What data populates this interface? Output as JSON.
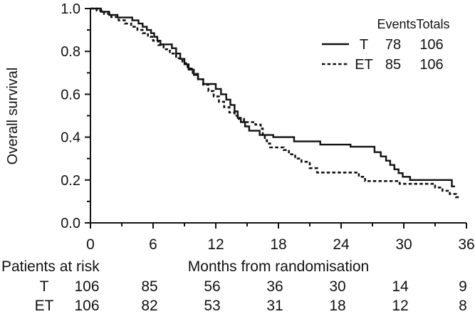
{
  "figure": {
    "background": "#ffffff",
    "ink": "#111111"
  },
  "chart_data": {
    "type": "line",
    "subtype": "kaplan-meier-step-curves",
    "title": "",
    "xlabel": "Months from randomisation",
    "ylabel": "Overall survival",
    "xlim": [
      0,
      36
    ],
    "ylim": [
      0.0,
      1.0
    ],
    "grid": "off",
    "legend_position": "top-right",
    "x_major_ticks": [
      0,
      6,
      12,
      18,
      24,
      30,
      36
    ],
    "x_minor_ticks": [
      3,
      9,
      15,
      21,
      27,
      33
    ],
    "y_major_tick_labels": [
      "1.0",
      "0.8",
      "0.6",
      "0.4",
      "0.2",
      "0.0"
    ],
    "y_major_ticks": [
      1.0,
      0.8,
      0.6,
      0.4,
      0.2,
      0.0
    ],
    "y_minor_ticks": [
      0.9,
      0.7,
      0.5,
      0.3,
      0.1
    ],
    "legend": {
      "header_events": "Events",
      "header_totals": "Totals",
      "rows": [
        {
          "name": "T",
          "events": "78",
          "totals": "106",
          "style": "solid"
        },
        {
          "name": "ET",
          "events": "85",
          "totals": "106",
          "style": "dashed"
        }
      ]
    },
    "series": [
      {
        "name": "T",
        "style": "solid",
        "end": 34.9,
        "steps": [
          [
            0,
            1.0
          ],
          [
            1.0,
            0.985
          ],
          [
            1.8,
            0.97
          ],
          [
            2.6,
            0.958
          ],
          [
            4.0,
            0.945
          ],
          [
            4.6,
            0.93
          ],
          [
            5.0,
            0.915
          ],
          [
            5.4,
            0.9
          ],
          [
            5.8,
            0.885
          ],
          [
            6.1,
            0.868
          ],
          [
            6.4,
            0.85
          ],
          [
            6.7,
            0.833
          ],
          [
            7.8,
            0.815
          ],
          [
            8.2,
            0.79
          ],
          [
            8.6,
            0.765
          ],
          [
            9.0,
            0.74
          ],
          [
            9.4,
            0.715
          ],
          [
            9.9,
            0.69
          ],
          [
            10.3,
            0.67
          ],
          [
            10.8,
            0.648
          ],
          [
            12.0,
            0.625
          ],
          [
            12.5,
            0.6
          ],
          [
            13.0,
            0.575
          ],
          [
            13.4,
            0.55
          ],
          [
            13.8,
            0.52
          ],
          [
            14.1,
            0.49
          ],
          [
            14.4,
            0.47
          ],
          [
            14.8,
            0.45
          ],
          [
            15.2,
            0.43
          ],
          [
            16.2,
            0.41
          ],
          [
            17.5,
            0.4
          ],
          [
            19.5,
            0.38
          ],
          [
            22.0,
            0.365
          ],
          [
            24.9,
            0.355
          ],
          [
            27.2,
            0.33
          ],
          [
            27.8,
            0.31
          ],
          [
            28.3,
            0.29
          ],
          [
            28.7,
            0.27
          ],
          [
            29.1,
            0.25
          ],
          [
            29.5,
            0.232
          ],
          [
            29.9,
            0.215
          ],
          [
            30.6,
            0.2
          ],
          [
            34.6,
            0.17
          ]
        ]
      },
      {
        "name": "ET",
        "style": "dashed",
        "end": 35.3,
        "steps": [
          [
            0,
            1.0
          ],
          [
            0.6,
            0.99
          ],
          [
            1.3,
            0.975
          ],
          [
            2.0,
            0.96
          ],
          [
            2.7,
            0.945
          ],
          [
            3.3,
            0.93
          ],
          [
            3.9,
            0.915
          ],
          [
            4.5,
            0.9
          ],
          [
            5.0,
            0.885
          ],
          [
            5.5,
            0.868
          ],
          [
            6.0,
            0.85
          ],
          [
            6.5,
            0.83
          ],
          [
            7.0,
            0.81
          ],
          [
            7.6,
            0.79
          ],
          [
            8.2,
            0.768
          ],
          [
            8.8,
            0.745
          ],
          [
            9.3,
            0.72
          ],
          [
            9.8,
            0.695
          ],
          [
            10.3,
            0.67
          ],
          [
            10.8,
            0.645
          ],
          [
            11.3,
            0.615
          ],
          [
            11.8,
            0.59
          ],
          [
            12.3,
            0.565
          ],
          [
            12.8,
            0.54
          ],
          [
            13.3,
            0.515
          ],
          [
            13.8,
            0.5
          ],
          [
            14.2,
            0.485
          ],
          [
            14.7,
            0.47
          ],
          [
            15.8,
            0.458
          ],
          [
            16.3,
            0.44
          ],
          [
            16.5,
            0.41
          ],
          [
            16.7,
            0.385
          ],
          [
            16.9,
            0.37
          ],
          [
            17.2,
            0.352
          ],
          [
            18.5,
            0.34
          ],
          [
            19.0,
            0.32
          ],
          [
            19.6,
            0.3
          ],
          [
            20.2,
            0.285
          ],
          [
            21.0,
            0.255
          ],
          [
            21.7,
            0.235
          ],
          [
            25.7,
            0.215
          ],
          [
            26.3,
            0.195
          ],
          [
            29.6,
            0.182
          ],
          [
            33.0,
            0.165
          ],
          [
            33.7,
            0.15
          ],
          [
            34.4,
            0.135
          ],
          [
            35.0,
            0.12
          ]
        ]
      }
    ]
  },
  "risk_table": {
    "title": "Patients at risk",
    "months": [
      0,
      6,
      12,
      18,
      24,
      30,
      36
    ],
    "rows": [
      {
        "label": "T",
        "counts": [
          "106",
          "85",
          "56",
          "36",
          "30",
          "14",
          "9"
        ]
      },
      {
        "label": "ET",
        "counts": [
          "106",
          "82",
          "53",
          "31",
          "18",
          "12",
          "8"
        ]
      }
    ]
  }
}
